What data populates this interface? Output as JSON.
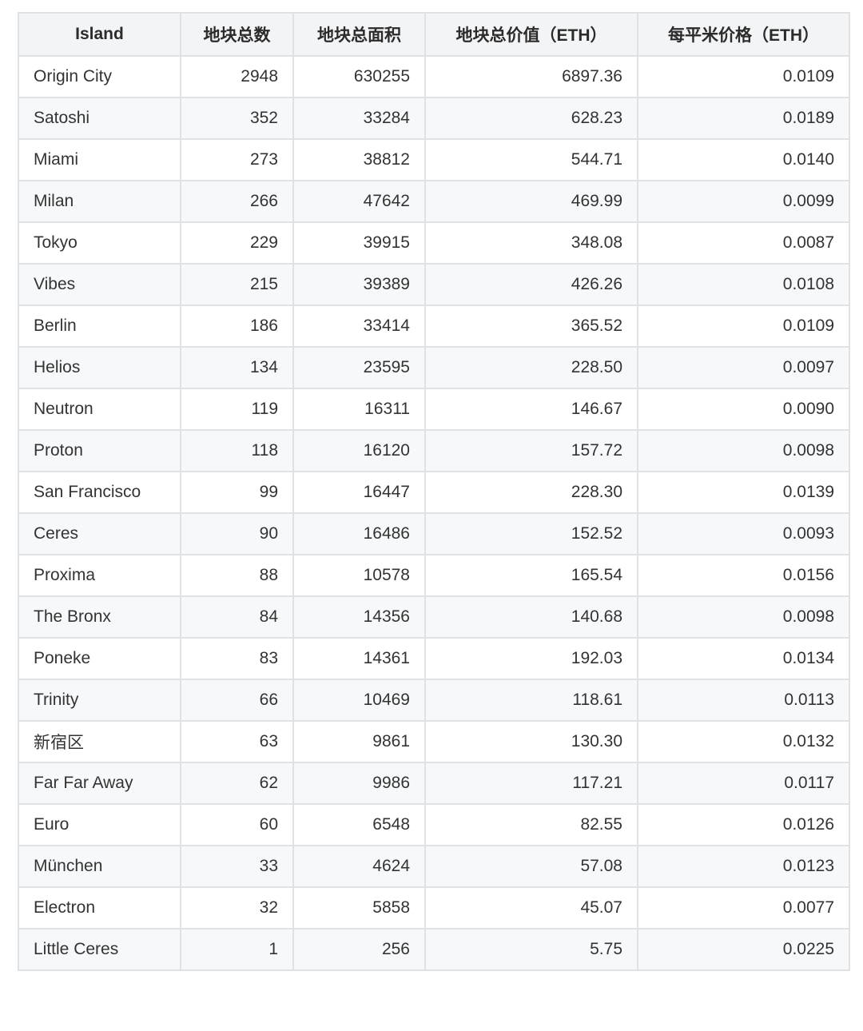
{
  "chart_data": {
    "type": "table",
    "columns": [
      "Island",
      "地块总数",
      "地块总面积",
      "地块总价值（ETH）",
      "每平米价格（ETH）"
    ],
    "rows": [
      [
        "Origin City",
        "2948",
        "630255",
        "6897.36",
        "0.0109"
      ],
      [
        "Satoshi",
        "352",
        "33284",
        "628.23",
        "0.0189"
      ],
      [
        "Miami",
        "273",
        "38812",
        "544.71",
        "0.0140"
      ],
      [
        "Milan",
        "266",
        "47642",
        "469.99",
        "0.0099"
      ],
      [
        "Tokyo",
        "229",
        "39915",
        "348.08",
        "0.0087"
      ],
      [
        "Vibes",
        "215",
        "39389",
        "426.26",
        "0.0108"
      ],
      [
        "Berlin",
        "186",
        "33414",
        "365.52",
        "0.0109"
      ],
      [
        "Helios",
        "134",
        "23595",
        "228.50",
        "0.0097"
      ],
      [
        "Neutron",
        "119",
        "16311",
        "146.67",
        "0.0090"
      ],
      [
        "Proton",
        "118",
        "16120",
        "157.72",
        "0.0098"
      ],
      [
        "San Francisco",
        "99",
        "16447",
        "228.30",
        "0.0139"
      ],
      [
        "Ceres",
        "90",
        "16486",
        "152.52",
        "0.0093"
      ],
      [
        "Proxima",
        "88",
        "10578",
        "165.54",
        "0.0156"
      ],
      [
        "The Bronx",
        "84",
        "14356",
        "140.68",
        "0.0098"
      ],
      [
        "Poneke",
        "83",
        "14361",
        "192.03",
        "0.0134"
      ],
      [
        "Trinity",
        "66",
        "10469",
        "118.61",
        "0.0113"
      ],
      [
        "新宿区",
        "63",
        "9861",
        "130.30",
        "0.0132"
      ],
      [
        "Far Far Away",
        "62",
        "9986",
        "117.21",
        "0.0117"
      ],
      [
        "Euro",
        "60",
        "6548",
        "82.55",
        "0.0126"
      ],
      [
        "München",
        "33",
        "4624",
        "57.08",
        "0.0123"
      ],
      [
        "Electron",
        "32",
        "5858",
        "45.07",
        "0.0077"
      ],
      [
        "Little Ceres",
        "1",
        "256",
        "5.75",
        "0.0225"
      ]
    ]
  }
}
